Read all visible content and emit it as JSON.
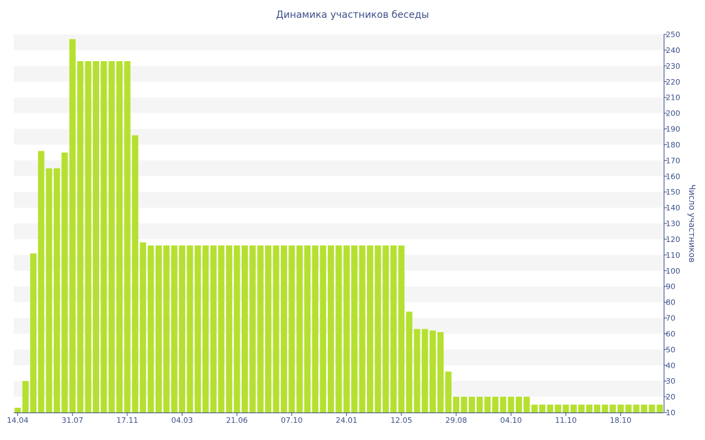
{
  "chart_data": {
    "type": "bar",
    "title": "Динамика участников беседы",
    "xlabel": "",
    "ylabel": "Число участников",
    "ylim": [
      10,
      250
    ],
    "yticks": [
      10,
      20,
      30,
      40,
      50,
      60,
      70,
      80,
      90,
      100,
      110,
      120,
      130,
      140,
      150,
      160,
      170,
      180,
      190,
      200,
      210,
      220,
      230,
      240,
      250
    ],
    "grid": true,
    "y_axis_side": "right",
    "bar_color": "#b5e02f",
    "band_color": "#f5f5f5",
    "text_color": "#3d4f8a",
    "x_tick_labels": [
      {
        "index": 0,
        "label": "14.04"
      },
      {
        "index": 7,
        "label": "31.07"
      },
      {
        "index": 14,
        "label": "17.11"
      },
      {
        "index": 21,
        "label": "04.03"
      },
      {
        "index": 28,
        "label": "21.06"
      },
      {
        "index": 35,
        "label": "07.10"
      },
      {
        "index": 42,
        "label": "24.01"
      },
      {
        "index": 49,
        "label": "12.05"
      },
      {
        "index": 56,
        "label": "29.08"
      },
      {
        "index": 63,
        "label": "04.10"
      },
      {
        "index": 70,
        "label": "11.10"
      },
      {
        "index": 77,
        "label": "18.10"
      }
    ],
    "values": [
      13,
      30,
      111,
      176,
      165,
      165,
      175,
      247,
      233,
      233,
      233,
      233,
      233,
      233,
      233,
      186,
      118,
      116,
      116,
      116,
      116,
      116,
      116,
      116,
      116,
      116,
      116,
      116,
      116,
      116,
      116,
      116,
      116,
      116,
      116,
      116,
      116,
      116,
      116,
      116,
      116,
      116,
      116,
      116,
      116,
      116,
      116,
      116,
      116,
      116,
      74,
      63,
      63,
      62,
      61,
      36,
      20,
      20,
      20,
      20,
      20,
      20,
      20,
      20,
      20,
      20,
      15,
      15,
      15,
      15,
      15,
      15,
      15,
      15,
      15,
      15,
      15,
      15,
      15,
      15,
      15,
      15,
      15
    ]
  }
}
